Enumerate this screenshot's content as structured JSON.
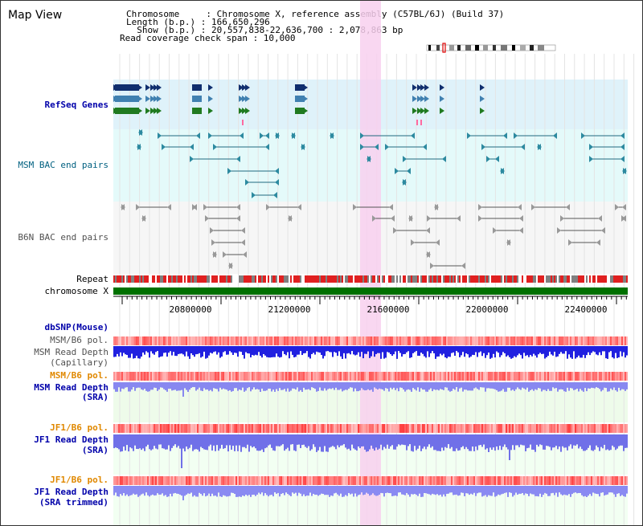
{
  "title": "Map View",
  "header": {
    "line1": "Chromosome     : Chromosome X, reference assembly (C57BL/6J) (Build 37)",
    "line2": "Length (b.p.) : 166,650,296",
    "line3": "  Show (b.p.) : 20,557,838-22,636,700 : 2,078,863 bp",
    "line4": "Read coverage check span : 10,000"
  },
  "tracks": {
    "refseq": "RefSeq Genes",
    "msm_bac": "MSM BAC end pairs",
    "b6n_bac": "B6N BAC end pairs",
    "repeat": "Repeat",
    "chromosome": "chromosome X",
    "dbsnp": "dbSNP(Mouse)",
    "msm_b6_pol": "MSM/B6 pol.",
    "msm_read_depth": "MSM Read Depth",
    "capillary": "(Capillary)",
    "msm_b6_pol2": "MSM/B6 pol.",
    "msm_read_depth_sra": "MSM Read Depth",
    "sra": "(SRA)",
    "jf1_b6_pol": "JF1/B6 pol.",
    "jf1_read_depth": "JF1 Read Depth",
    "jf1_sra": "(SRA)",
    "jf1_b6_pol2": "JF1/B6 pol.",
    "jf1_read_depth2": "JF1 Read Depth",
    "sra_trimmed": "(SRA trimmed)"
  },
  "axis": {
    "ticks": [
      "20800000",
      "21200000",
      "21600000",
      "22000000",
      "22400000"
    ]
  },
  "colors": {
    "refseq_bg": "#dff2fa",
    "msm_bg": "#e4fafa",
    "b6n_bg": "#f6f6f6",
    "highlight": "#f8d0ee",
    "repeat_red": "#e02020",
    "chromosome_green": "#007000",
    "label_blue": "#0000aa",
    "label_orange": "#e08800",
    "label_teal": "#006080",
    "label_gray": "#505050"
  }
}
